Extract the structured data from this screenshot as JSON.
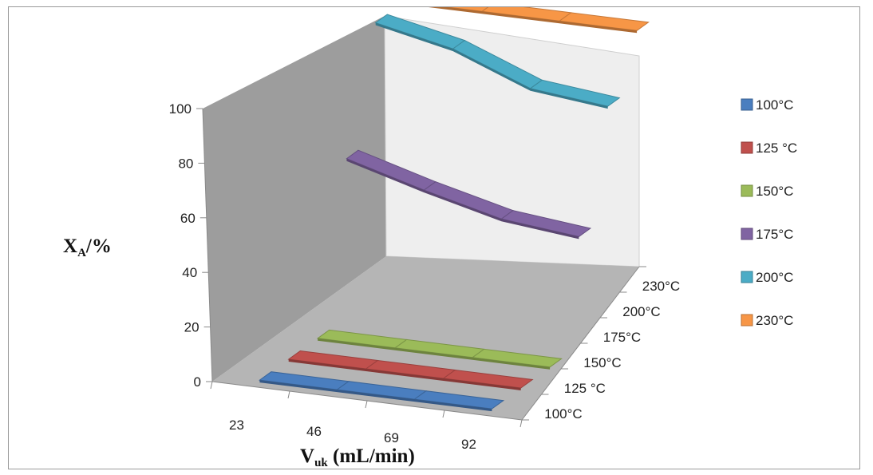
{
  "chart_data": {
    "type": "line",
    "style": "3d-ribbon",
    "title": "",
    "xlabel_main": "V",
    "xlabel_sub": "uk",
    "xlabel_rest": " (mL/min)",
    "ylabel_main": "X",
    "ylabel_sub": "A",
    "ylabel_rest": "/%",
    "categories": [
      "23",
      "46",
      "69",
      "92"
    ],
    "y_ticks": [
      "0",
      "20",
      "40",
      "60",
      "80",
      "100"
    ],
    "ylim": [
      0,
      100
    ],
    "depth_labels": [
      "100°C",
      "125 °C",
      "150°C",
      "175°C",
      "200°C",
      "230°C"
    ],
    "legend_position": "right",
    "grid": false,
    "series": [
      {
        "name": "100°C",
        "color": "#4a7ebf",
        "values": [
          0,
          0,
          0,
          0
        ]
      },
      {
        "name": "125 °C",
        "color": "#c0504d",
        "values": [
          0,
          0,
          0,
          0
        ]
      },
      {
        "name": "150°C",
        "color": "#9bbb59",
        "values": [
          0,
          0,
          0,
          0
        ]
      },
      {
        "name": "175°C",
        "color": "#8064a2",
        "values": [
          58,
          50,
          43,
          40
        ]
      },
      {
        "name": "200°C",
        "color": "#4bacc6",
        "values": [
          100,
          94,
          83,
          80
        ]
      },
      {
        "name": "230°C",
        "color": "#f79646",
        "values": [
          100,
          100,
          100,
          100
        ]
      }
    ]
  }
}
